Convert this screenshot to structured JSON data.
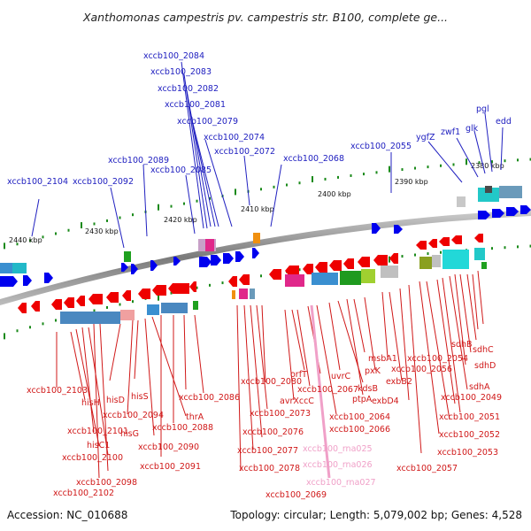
{
  "header": {
    "title": "Xanthomonas campestris pv. campestris str. B100, complete ge..."
  },
  "footer": {
    "accession": "Accession: NC_010688",
    "summary": "Topology: circular; Length: 5,079,002 bp; Genes: 4,528"
  },
  "scale_labels": [
    "2440 kbp",
    "2430 kbp",
    "2420 kbp",
    "2410 kbp",
    "2400 kbp",
    "2390 kbp",
    "2380 kbp"
  ],
  "top_labels": [
    "xccb100_2104",
    "xccb100_2092",
    "xccb100_2089",
    "xccb100_2085",
    "xccb100_2084",
    "xccb100_2083",
    "xccb100_2082",
    "xccb100_2081",
    "xccb100_2079",
    "xccb100_2074",
    "xccb100_2072",
    "xccb100_2068",
    "xccb100_2055",
    "ygfZ",
    "zwf1",
    "glk",
    "pgl",
    "edd"
  ],
  "bottom_labels": [
    "xccb100_2103",
    "hisH",
    "hisD",
    "hisS",
    "xccb100_2094",
    "hisG",
    "hisC1",
    "xccb100_2101",
    "xccb100_2100",
    "xccb100_2098",
    "xccb100_2102",
    "xccb100_2091",
    "xccb100_2090",
    "xccb100_2088",
    "thrA",
    "xccb100_2086",
    "xccb100_2080",
    "xccb100_2073",
    "xccb100_2076",
    "xccb100_2077",
    "xccb100_2078",
    "xccb100_2069",
    "orfT",
    "avrXccC",
    "xccb100_2067",
    "uvrC",
    "kdsB",
    "xccb100_2066",
    "xccb100_2064",
    "ptpA",
    "pxK",
    "msbA1",
    "exbB2",
    "exbD4",
    "xccb100_2056",
    "xccb100_2054",
    "sdhB",
    "sdhC",
    "sdhD",
    "sdhA",
    "xccb100_2049",
    "xccb100_2051",
    "xccb100_2052",
    "xccb100_2053",
    "xccb100_2057"
  ],
  "rna_labels": [
    "xccb100_rna025",
    "xccb100_rna026",
    "xccb100_rna027"
  ],
  "colors": {
    "forward_gene": "#0000ee",
    "reverse_gene": "#ee0000",
    "top_label": "#2020c0",
    "bottom_label": "#d01818",
    "rna_label": "#f0a0c8",
    "backbone": "#888888"
  }
}
